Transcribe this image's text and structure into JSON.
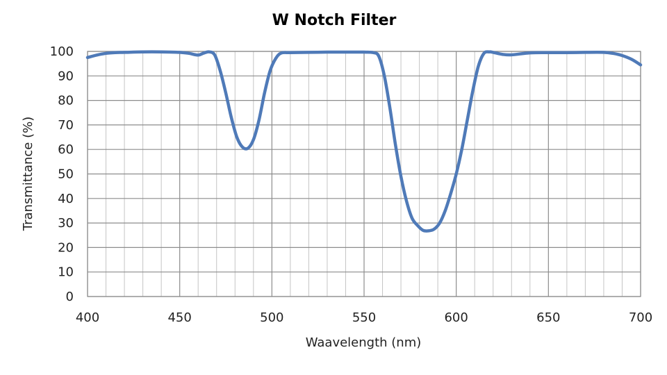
{
  "chart_data": {
    "type": "line",
    "title": "W Notch Filter",
    "xlabel": "Waavelength (nm)",
    "ylabel": "Transmittance (%)",
    "xlim": [
      400,
      700
    ],
    "ylim": [
      0,
      100
    ],
    "x_major_ticks": [
      400,
      450,
      500,
      550,
      600,
      650,
      700
    ],
    "y_major_ticks": [
      0,
      10,
      20,
      30,
      40,
      50,
      60,
      70,
      80,
      90,
      100
    ],
    "x_minor_step": 10,
    "grid": true,
    "legend": "none",
    "color": "#4f7ab8",
    "series": [
      {
        "x": [
          400,
          405,
          410,
          415,
          420,
          430,
          440,
          450,
          455,
          460,
          463,
          466,
          469,
          472,
          475,
          478,
          481,
          484,
          487,
          490,
          493,
          496,
          499,
          502,
          505,
          510,
          520,
          530,
          540,
          550,
          555,
          558,
          561,
          564,
          567,
          570,
          573,
          576,
          579,
          582,
          585,
          588,
          591,
          594,
          597,
          600,
          603,
          606,
          609,
          612,
          615,
          618,
          620,
          625,
          630,
          640,
          650,
          660,
          670,
          680,
          685,
          690,
          695,
          700
        ],
        "y": [
          97.5,
          98.5,
          99.2,
          99.5,
          99.6,
          99.8,
          99.8,
          99.6,
          99.2,
          98.5,
          99.3,
          99.8,
          98.5,
          92,
          83,
          73,
          65,
          61,
          60.5,
          64,
          72,
          83,
          92,
          97,
          99.3,
          99.5,
          99.6,
          99.7,
          99.7,
          99.7,
          99.5,
          98,
          90,
          77,
          62,
          49,
          39,
          32,
          29,
          27,
          26.8,
          27.5,
          30,
          35,
          42,
          50,
          60,
          72,
          84,
          94,
          99.2,
          99.8,
          99.6,
          98.8,
          98.6,
          99.4,
          99.5,
          99.5,
          99.6,
          99.6,
          99.2,
          98.3,
          96.8,
          94.5
        ]
      }
    ]
  }
}
